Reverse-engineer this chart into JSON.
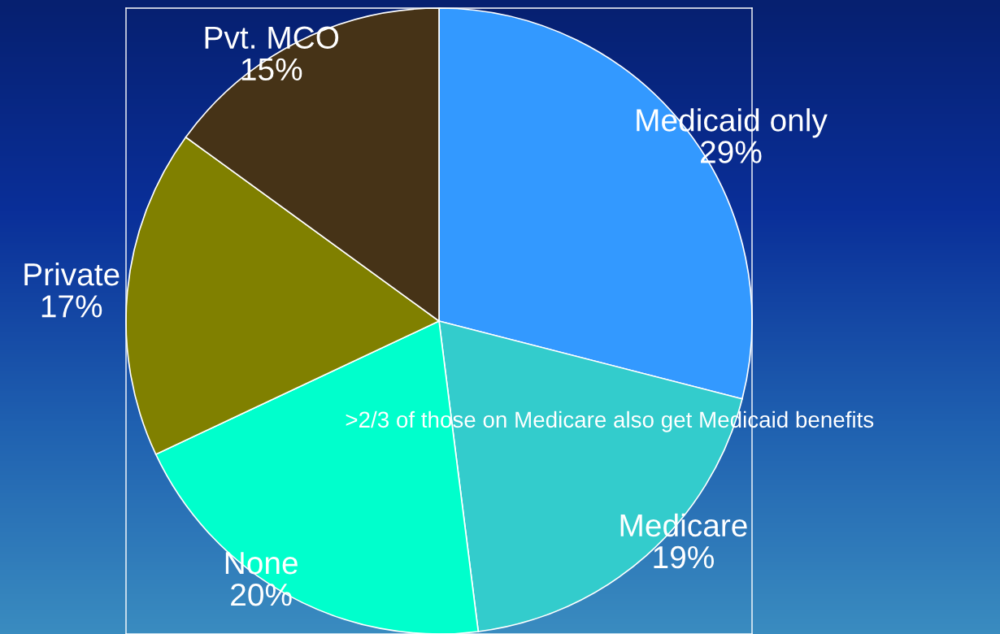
{
  "chart_data": {
    "type": "pie",
    "categories": [
      "Medicaid only",
      "Medicare",
      "None",
      "Private",
      "Pvt. MCO"
    ],
    "values": [
      29,
      19,
      20,
      17,
      15
    ],
    "value_labels": [
      "29%",
      "19%",
      "20%",
      "17%",
      "15%"
    ],
    "colors": [
      "#3399ff",
      "#33cccc",
      "#00ffcc",
      "#808000",
      "#463317"
    ],
    "annotations": [
      ">2/3 of those on Medicare also get Medicaid benefits"
    ]
  }
}
